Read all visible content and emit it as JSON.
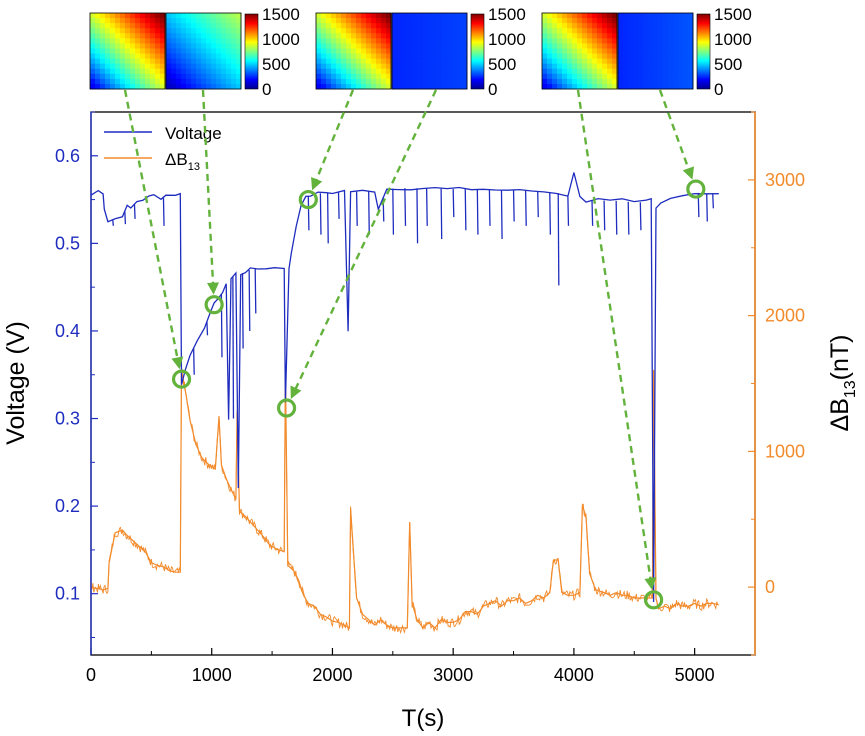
{
  "chart_data": {
    "type": "line",
    "x_axis": {
      "label": "T(s)",
      "range": [
        0,
        5500
      ],
      "ticks": [
        0,
        1000,
        2000,
        3000,
        4000,
        5000
      ],
      "tick_labels": [
        "0",
        "1000",
        "2000",
        "3000",
        "4000",
        "5000"
      ]
    },
    "y_left": {
      "label": "Voltage (V)",
      "range": [
        0.03,
        0.65
      ],
      "ticks": [
        0.1,
        0.2,
        0.3,
        0.4,
        0.5,
        0.6
      ],
      "tick_labels": [
        "0.1",
        "0.2",
        "0.3",
        "0.4",
        "0.5",
        "0.6"
      ],
      "color": "#1f2dbf"
    },
    "y_right": {
      "label_main": "ΔB",
      "label_sub": "13",
      "label_tail": "(nT)",
      "range": [
        -500,
        3500
      ],
      "ticks": [
        0,
        1000,
        2000,
        3000
      ],
      "tick_labels": [
        "0",
        "1000",
        "2000",
        "3000"
      ],
      "color": "#f28b2c"
    },
    "legend": {
      "position": "top-left",
      "items": [
        {
          "label": "Voltage",
          "color": "#1f2dbf"
        },
        {
          "label_main": "ΔB",
          "label_sub": "13",
          "color": "#f28b2c"
        }
      ]
    },
    "series": [
      {
        "name": "Voltage",
        "axis": "left",
        "color": "#1f2dbf",
        "points": [
          [
            0,
            0.555
          ],
          [
            60,
            0.56
          ],
          [
            100,
            0.558
          ],
          [
            110,
            0.54
          ],
          [
            140,
            0.525
          ],
          [
            200,
            0.528
          ],
          [
            260,
            0.532
          ],
          [
            300,
            0.542
          ],
          [
            330,
            0.54
          ],
          [
            380,
            0.548
          ],
          [
            430,
            0.55
          ],
          [
            480,
            0.553
          ],
          [
            520,
            0.555
          ],
          [
            580,
            0.552
          ],
          [
            620,
            0.555
          ],
          [
            700,
            0.556
          ],
          [
            740,
            0.556
          ],
          [
            750,
            0.34
          ],
          [
            780,
            0.355
          ],
          [
            820,
            0.372
          ],
          [
            880,
            0.39
          ],
          [
            940,
            0.405
          ],
          [
            990,
            0.42
          ],
          [
            1020,
            0.43
          ],
          [
            1050,
            0.438
          ],
          [
            1090,
            0.444
          ],
          [
            1120,
            0.452
          ],
          [
            1140,
            0.3
          ],
          [
            1160,
            0.46
          ],
          [
            1200,
            0.466
          ],
          [
            1220,
            0.22
          ],
          [
            1240,
            0.465
          ],
          [
            1280,
            0.468
          ],
          [
            1320,
            0.47
          ],
          [
            1380,
            0.471
          ],
          [
            1450,
            0.472
          ],
          [
            1520,
            0.472
          ],
          [
            1600,
            0.472
          ],
          [
            1610,
            0.32
          ],
          [
            1640,
            0.47
          ],
          [
            1660,
            0.49
          ],
          [
            1700,
            0.52
          ],
          [
            1740,
            0.545
          ],
          [
            1780,
            0.552
          ],
          [
            1820,
            0.555
          ],
          [
            1880,
            0.557
          ],
          [
            1950,
            0.558
          ],
          [
            2000,
            0.558
          ],
          [
            2100,
            0.56
          ],
          [
            2130,
            0.4
          ],
          [
            2150,
            0.558
          ],
          [
            2250,
            0.56
          ],
          [
            2350,
            0.56
          ],
          [
            2380,
            0.54
          ],
          [
            2450,
            0.562
          ],
          [
            2550,
            0.563
          ],
          [
            2650,
            0.563
          ],
          [
            2750,
            0.563
          ],
          [
            2850,
            0.563
          ],
          [
            2950,
            0.562
          ],
          [
            3050,
            0.562
          ],
          [
            3150,
            0.562
          ],
          [
            3250,
            0.562
          ],
          [
            3350,
            0.561
          ],
          [
            3450,
            0.561
          ],
          [
            3550,
            0.56
          ],
          [
            3650,
            0.56
          ],
          [
            3750,
            0.559
          ],
          [
            3850,
            0.558
          ],
          [
            3950,
            0.555
          ],
          [
            4000,
            0.58
          ],
          [
            4050,
            0.555
          ],
          [
            4100,
            0.548
          ],
          [
            4200,
            0.55
          ],
          [
            4300,
            0.548
          ],
          [
            4400,
            0.549
          ],
          [
            4500,
            0.546
          ],
          [
            4600,
            0.548
          ],
          [
            4640,
            0.55
          ],
          [
            4660,
            0.09
          ],
          [
            4680,
            0.54
          ],
          [
            4720,
            0.548
          ],
          [
            4800,
            0.552
          ],
          [
            4900,
            0.555
          ],
          [
            5000,
            0.558
          ],
          [
            5100,
            0.557
          ],
          [
            5200,
            0.556
          ]
        ],
        "dips": [
          [
            180,
            0.52
          ],
          [
            280,
            0.522
          ],
          [
            360,
            0.528
          ],
          [
            600,
            0.52
          ],
          [
            850,
            0.35
          ],
          [
            960,
            0.395
          ],
          [
            1080,
            0.37
          ],
          [
            1175,
            0.3
          ],
          [
            1255,
            0.38
          ],
          [
            1310,
            0.4
          ],
          [
            1360,
            0.42
          ],
          [
            1800,
            0.515
          ],
          [
            1900,
            0.51
          ],
          [
            1960,
            0.5
          ],
          [
            2050,
            0.528
          ],
          [
            2200,
            0.52
          ],
          [
            2300,
            0.51
          ],
          [
            2420,
            0.525
          ],
          [
            2500,
            0.51
          ],
          [
            2600,
            0.52
          ],
          [
            2700,
            0.5
          ],
          [
            2780,
            0.52
          ],
          [
            2900,
            0.505
          ],
          [
            3000,
            0.53
          ],
          [
            3100,
            0.515
          ],
          [
            3200,
            0.51
          ],
          [
            3300,
            0.52
          ],
          [
            3400,
            0.505
          ],
          [
            3500,
            0.525
          ],
          [
            3600,
            0.52
          ],
          [
            3700,
            0.53
          ],
          [
            3800,
            0.51
          ],
          [
            3870,
            0.452
          ],
          [
            3950,
            0.52
          ],
          [
            4150,
            0.52
          ],
          [
            4250,
            0.515
          ],
          [
            4350,
            0.51
          ],
          [
            4450,
            0.51
          ],
          [
            4550,
            0.515
          ],
          [
            5030,
            0.53
          ],
          [
            5100,
            0.525
          ],
          [
            5150,
            0.54
          ]
        ]
      },
      {
        "name": "ΔB13",
        "axis": "right",
        "color": "#f28b2c",
        "points": [
          [
            0,
            0
          ],
          [
            100,
            -20
          ],
          [
            140,
            -10
          ],
          [
            150,
            180
          ],
          [
            200,
            400
          ],
          [
            260,
            420
          ],
          [
            300,
            380
          ],
          [
            350,
            340
          ],
          [
            400,
            300
          ],
          [
            450,
            260
          ],
          [
            500,
            180
          ],
          [
            550,
            160
          ],
          [
            600,
            150
          ],
          [
            650,
            120
          ],
          [
            700,
            110
          ],
          [
            740,
            110
          ],
          [
            750,
            1600
          ],
          [
            790,
            1400
          ],
          [
            820,
            1230
          ],
          [
            870,
            1050
          ],
          [
            920,
            950
          ],
          [
            980,
            900
          ],
          [
            1030,
            870
          ],
          [
            1060,
            1260
          ],
          [
            1080,
            900
          ],
          [
            1120,
            800
          ],
          [
            1160,
            720
          ],
          [
            1200,
            650
          ],
          [
            1210,
            1300
          ],
          [
            1230,
            560
          ],
          [
            1280,
            520
          ],
          [
            1320,
            480
          ],
          [
            1360,
            440
          ],
          [
            1420,
            380
          ],
          [
            1480,
            310
          ],
          [
            1540,
            280
          ],
          [
            1600,
            260
          ],
          [
            1610,
            1600
          ],
          [
            1630,
            160
          ],
          [
            1680,
            120
          ],
          [
            1720,
            50
          ],
          [
            1760,
            -60
          ],
          [
            1800,
            -120
          ],
          [
            1850,
            -140
          ],
          [
            1900,
            -200
          ],
          [
            1950,
            -220
          ],
          [
            2000,
            -250
          ],
          [
            2050,
            -260
          ],
          [
            2100,
            -280
          ],
          [
            2140,
            -300
          ],
          [
            2150,
            580
          ],
          [
            2180,
            180
          ],
          [
            2200,
            -80
          ],
          [
            2250,
            -200
          ],
          [
            2300,
            -240
          ],
          [
            2350,
            -280
          ],
          [
            2400,
            -240
          ],
          [
            2450,
            -280
          ],
          [
            2500,
            -300
          ],
          [
            2550,
            -300
          ],
          [
            2620,
            -300
          ],
          [
            2640,
            480
          ],
          [
            2660,
            -120
          ],
          [
            2700,
            -240
          ],
          [
            2750,
            -300
          ],
          [
            2800,
            -260
          ],
          [
            2850,
            -300
          ],
          [
            2900,
            -240
          ],
          [
            2950,
            -260
          ],
          [
            3000,
            -260
          ],
          [
            3050,
            -240
          ],
          [
            3100,
            -180
          ],
          [
            3150,
            -180
          ],
          [
            3200,
            -200
          ],
          [
            3250,
            -140
          ],
          [
            3300,
            -120
          ],
          [
            3350,
            -100
          ],
          [
            3400,
            -140
          ],
          [
            3450,
            -100
          ],
          [
            3500,
            -100
          ],
          [
            3550,
            -80
          ],
          [
            3600,
            -120
          ],
          [
            3650,
            -100
          ],
          [
            3700,
            -60
          ],
          [
            3750,
            -80
          ],
          [
            3800,
            -40
          ],
          [
            3830,
            200
          ],
          [
            3870,
            200
          ],
          [
            3900,
            -40
          ],
          [
            3950,
            -60
          ],
          [
            4000,
            -60
          ],
          [
            4050,
            -40
          ],
          [
            4070,
            600
          ],
          [
            4100,
            520
          ],
          [
            4130,
            100
          ],
          [
            4180,
            -20
          ],
          [
            4250,
            -40
          ],
          [
            4300,
            -60
          ],
          [
            4350,
            -40
          ],
          [
            4400,
            -60
          ],
          [
            4450,
            -60
          ],
          [
            4500,
            -80
          ],
          [
            4550,
            -80
          ],
          [
            4600,
            -80
          ],
          [
            4650,
            -80
          ],
          [
            4660,
            1600
          ],
          [
            4680,
            -80
          ],
          [
            4700,
            -160
          ],
          [
            4750,
            -140
          ],
          [
            4800,
            -160
          ],
          [
            4850,
            -120
          ],
          [
            4900,
            -140
          ],
          [
            4950,
            -140
          ],
          [
            5000,
            -120
          ],
          [
            5050,
            -140
          ],
          [
            5100,
            -120
          ],
          [
            5150,
            -120
          ],
          [
            5200,
            -130
          ]
        ]
      }
    ],
    "markers": [
      {
        "t": 750,
        "v": 0.345
      },
      {
        "t": 1020,
        "v": 0.43
      },
      {
        "t": 1800,
        "v": 0.55
      },
      {
        "t": 1620,
        "v": 0.312
      },
      {
        "t": 4660,
        "v": 0.093
      },
      {
        "t": 5010,
        "v": 0.562
      }
    ],
    "colorbar": {
      "ticks": [
        0,
        500,
        1000,
        1500
      ],
      "tick_labels": [
        "0",
        "500",
        "1000",
        "1500"
      ],
      "range": [
        0,
        1500
      ]
    },
    "heatmaps": [
      {
        "mode": "grad",
        "strength": 1.0
      },
      {
        "mode": "grad",
        "strength": 0.55
      },
      {
        "mode": "grad",
        "strength": 1.0
      },
      {
        "mode": "flat",
        "strength": 0.05
      },
      {
        "mode": "grad",
        "strength": 1.0
      },
      {
        "mode": "flat",
        "strength": 0.08
      }
    ]
  }
}
